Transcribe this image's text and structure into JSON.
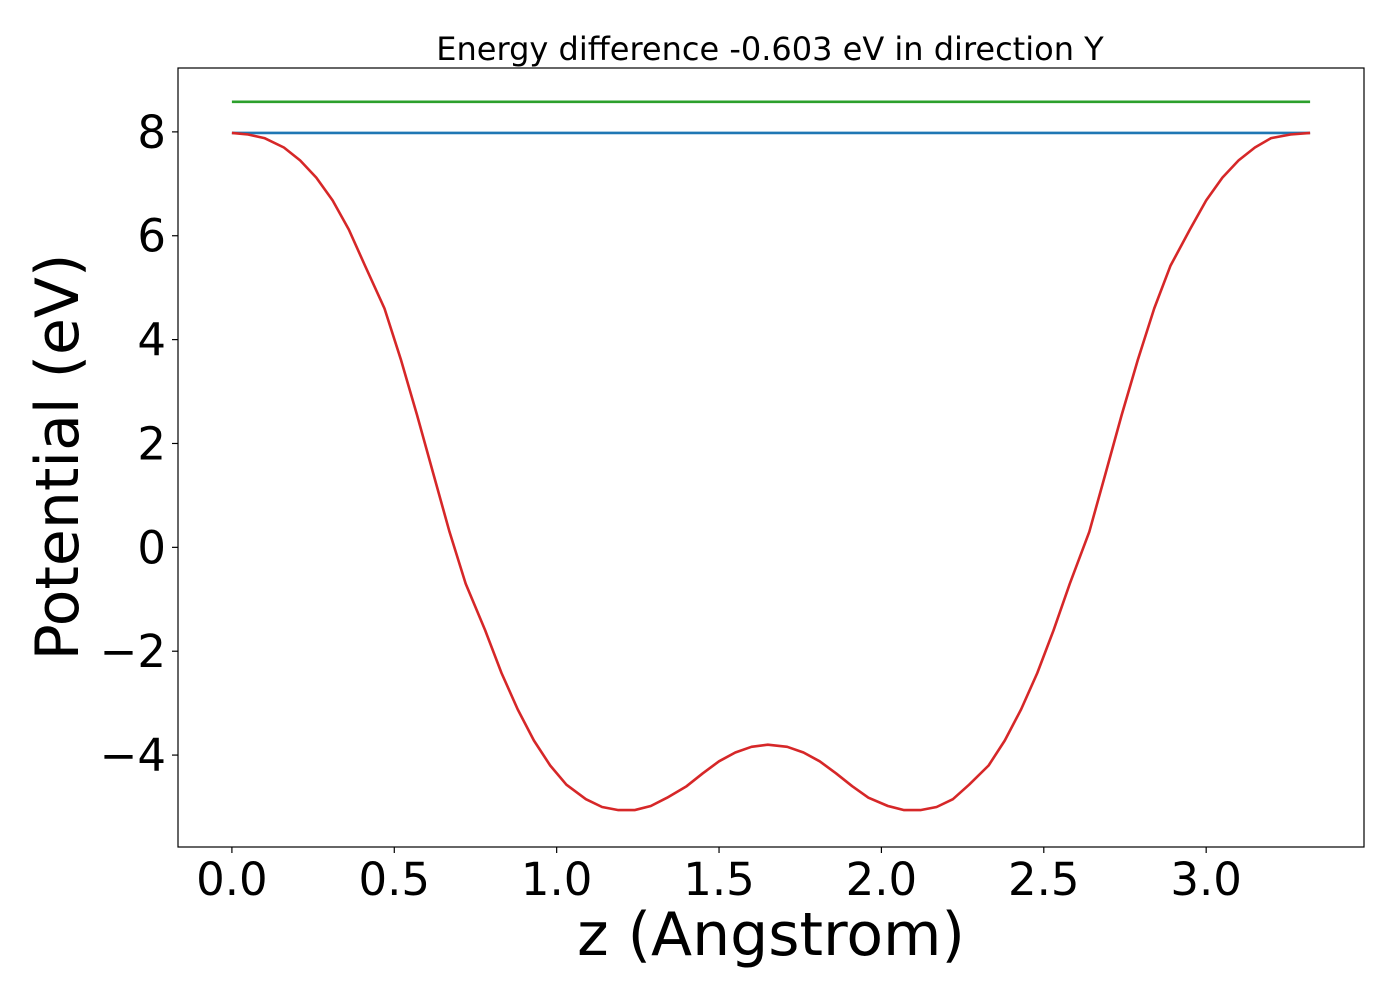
{
  "chart_data": {
    "type": "line",
    "title": "Energy difference -0.603 eV in direction Y",
    "xlabel": "z (Angstrom)",
    "ylabel": "Potential (eV)",
    "xlim": [
      -0.166,
      3.486
    ],
    "ylim": [
      -5.77,
      9.23
    ],
    "xticks": [
      0.0,
      0.5,
      1.0,
      1.5,
      2.0,
      2.5,
      3.0
    ],
    "xtick_labels": [
      "0.0",
      "0.5",
      "1.0",
      "1.5",
      "2.0",
      "2.5",
      "3.0"
    ],
    "yticks": [
      -4,
      -2,
      0,
      2,
      4,
      6,
      8
    ],
    "ytick_labels": [
      "−4",
      "−2",
      "0",
      "2",
      "4",
      "6",
      "8"
    ],
    "grid": false,
    "series": [
      {
        "color": "#2ca02c",
        "x": [
          0.0,
          3.32
        ],
        "y": [
          8.58,
          8.58
        ]
      },
      {
        "color": "#1f77b4",
        "x": [
          0.0,
          3.32
        ],
        "y": [
          7.98,
          7.98
        ]
      },
      {
        "color": "#d62728",
        "x": [
          0.0,
          0.05,
          0.1,
          0.16,
          0.21,
          0.26,
          0.31,
          0.36,
          0.41,
          0.47,
          0.52,
          0.57,
          0.62,
          0.67,
          0.72,
          0.78,
          0.83,
          0.88,
          0.93,
          0.98,
          1.03,
          1.09,
          1.14,
          1.19,
          1.24,
          1.29,
          1.34,
          1.4,
          1.45,
          1.5,
          1.55,
          1.6,
          1.65,
          1.71,
          1.76,
          1.81,
          1.86,
          1.91,
          1.96,
          2.02,
          2.07,
          2.12,
          2.17,
          2.22,
          2.27,
          2.33,
          2.38,
          2.43,
          2.48,
          2.53,
          2.58,
          2.64,
          2.69,
          2.74,
          2.79,
          2.84,
          2.89,
          2.95,
          3.0,
          3.05,
          3.1,
          3.15,
          3.2,
          3.26,
          3.32
        ],
        "y": [
          7.98,
          7.95,
          7.88,
          7.7,
          7.45,
          7.12,
          6.68,
          6.12,
          5.42,
          4.6,
          3.62,
          2.55,
          1.42,
          0.3,
          -0.7,
          -1.6,
          -2.42,
          -3.12,
          -3.72,
          -4.2,
          -4.57,
          -4.85,
          -5.0,
          -5.06,
          -5.06,
          -4.98,
          -4.82,
          -4.6,
          -4.35,
          -4.12,
          -3.95,
          -3.84,
          -3.8,
          -3.84,
          -3.95,
          -4.12,
          -4.35,
          -4.6,
          -4.82,
          -4.98,
          -5.06,
          -5.06,
          -5.0,
          -4.85,
          -4.57,
          -4.2,
          -3.72,
          -3.12,
          -2.42,
          -1.6,
          -0.7,
          0.3,
          1.42,
          2.55,
          3.62,
          4.6,
          5.42,
          6.12,
          6.68,
          7.12,
          7.45,
          7.7,
          7.88,
          7.95,
          7.98
        ]
      }
    ]
  }
}
